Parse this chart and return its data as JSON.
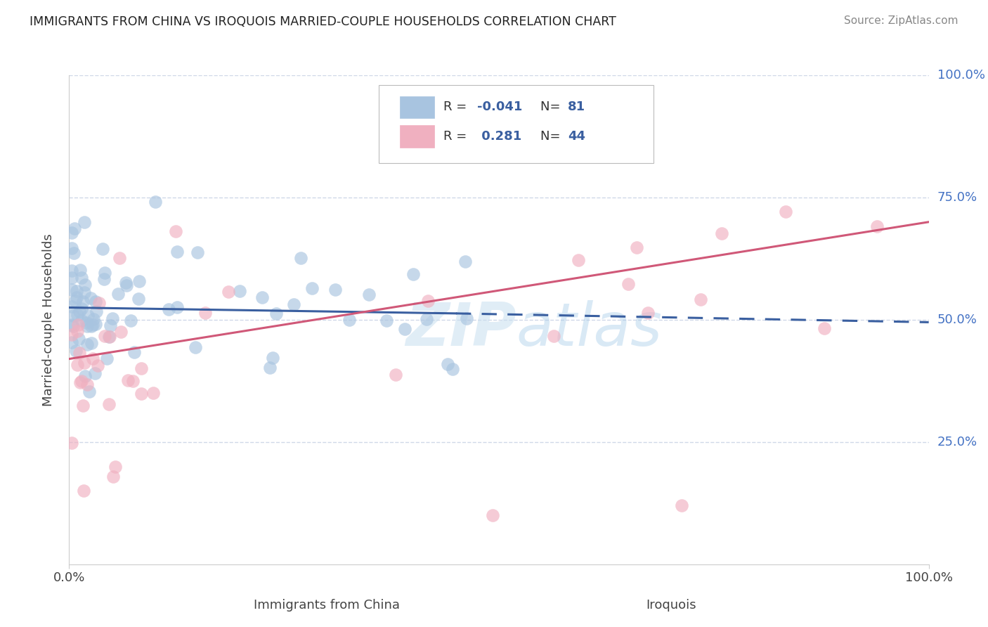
{
  "title": "IMMIGRANTS FROM CHINA VS IROQUOIS MARRIED-COUPLE HOUSEHOLDS CORRELATION CHART",
  "source": "Source: ZipAtlas.com",
  "ylabel": "Married-couple Households",
  "x_label_left": "Immigrants from China",
  "x_label_right": "Iroquois",
  "xlim": [
    0,
    100
  ],
  "ylim": [
    0,
    100
  ],
  "y_ticks": [
    25,
    50,
    75,
    100
  ],
  "y_tick_labels": [
    "25.0%",
    "50.0%",
    "75.0%",
    "100.0%"
  ],
  "legend_r1": "-0.041",
  "legend_n1": "81",
  "legend_r2": "0.281",
  "legend_n2": "44",
  "china_color": "#a8c4e0",
  "iroquois_color": "#f0b0c0",
  "china_line_color": "#3a5fa0",
  "iroquois_line_color": "#d05878",
  "background_color": "#ffffff",
  "grid_color": "#d0d8e8",
  "watermark_color": "#c8dff0",
  "title_color": "#222222",
  "source_color": "#888888",
  "axis_label_color": "#4472c4",
  "tick_color": "#4472c4"
}
